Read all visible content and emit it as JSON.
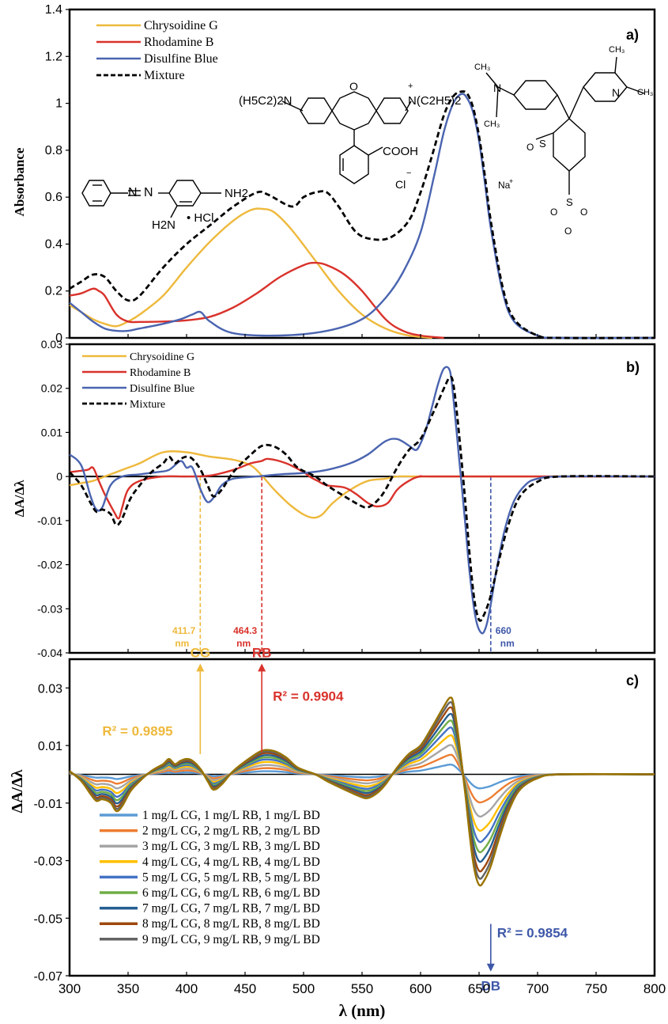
{
  "xaxis": {
    "label": "λ (nm)",
    "ticks": [
      "300",
      "350",
      "400",
      "450",
      "500",
      "550",
      "600",
      "650",
      "700",
      "750",
      "800"
    ],
    "range": [
      300,
      800
    ]
  },
  "structures": {
    "rb_left": "(H5C2)2N",
    "rb_right": "N(C2H5)2",
    "rb_acid": "COOH",
    "rb_anion": "Cl",
    "cg_amine1": "NH2",
    "cg_amine2": "H2N",
    "cg_salt": "• HCl",
    "db_cation": "Na"
  },
  "colors": {
    "chrysoidine": "#eeb93c",
    "rhodamine": "#d9322b",
    "disulfine": "#4a64b0",
    "mixture": "#000000",
    "annot_cg": "#eeb93c",
    "annot_rb": "#d9322b",
    "annot_db": "#3e57a8"
  },
  "chart_data": [
    {
      "id": "a",
      "type": "line",
      "panel_label": "a)",
      "ylabel": "Absorbance",
      "ylim": [
        0,
        1.4
      ],
      "yticks": [
        "0",
        "0.2",
        "0.4",
        "0.6",
        "0.8",
        "1",
        "1.2",
        "1.4"
      ],
      "legend_position": "top-left",
      "series": [
        {
          "name": "Chrysoidine G",
          "x": [
            300,
            310,
            320,
            330,
            340,
            350,
            360,
            380,
            400,
            420,
            440,
            455,
            465,
            475,
            490,
            510,
            530,
            550,
            570,
            590,
            610
          ],
          "y": [
            0.14,
            0.11,
            0.08,
            0.06,
            0.05,
            0.07,
            0.1,
            0.18,
            0.3,
            0.41,
            0.5,
            0.545,
            0.55,
            0.535,
            0.46,
            0.33,
            0.2,
            0.1,
            0.04,
            0.01,
            0
          ]
        },
        {
          "name": "Rhodamine B",
          "x": [
            300,
            310,
            320,
            325,
            330,
            340,
            350,
            360,
            380,
            400,
            420,
            440,
            460,
            480,
            500,
            510,
            520,
            535,
            550,
            570,
            585,
            600,
            620
          ],
          "y": [
            0.18,
            0.19,
            0.21,
            0.2,
            0.18,
            0.1,
            0.07,
            0.068,
            0.07,
            0.075,
            0.09,
            0.13,
            0.19,
            0.26,
            0.31,
            0.32,
            0.31,
            0.27,
            0.2,
            0.08,
            0.03,
            0.01,
            0
          ]
        },
        {
          "name": "Disulfine Blue",
          "x": [
            300,
            310,
            320,
            330,
            340,
            350,
            360,
            380,
            395,
            405,
            412,
            420,
            440,
            480,
            520,
            550,
            570,
            585,
            600,
            612,
            620,
            628,
            635,
            640,
            645,
            650,
            655,
            660,
            670,
            680,
            700,
            720,
            800
          ],
          "y": [
            0.15,
            0.11,
            0.07,
            0.04,
            0.03,
            0.03,
            0.04,
            0.06,
            0.08,
            0.1,
            0.11,
            0.07,
            0.02,
            0.01,
            0.03,
            0.08,
            0.17,
            0.28,
            0.45,
            0.7,
            0.88,
            1.0,
            1.04,
            1.02,
            0.96,
            0.84,
            0.66,
            0.47,
            0.2,
            0.07,
            0.01,
            0,
            0
          ]
        },
        {
          "name": "Mixture",
          "x": [
            300,
            310,
            320,
            330,
            340,
            350,
            360,
            380,
            400,
            420,
            440,
            460,
            470,
            490,
            500,
            510,
            520,
            530,
            545,
            560,
            575,
            590,
            600,
            610,
            620,
            628,
            635,
            640,
            645,
            650,
            655,
            660,
            670,
            680,
            700,
            720,
            800
          ],
          "y": [
            0.21,
            0.24,
            0.27,
            0.26,
            0.2,
            0.16,
            0.18,
            0.3,
            0.4,
            0.48,
            0.56,
            0.62,
            0.61,
            0.56,
            0.6,
            0.62,
            0.62,
            0.56,
            0.45,
            0.42,
            0.43,
            0.5,
            0.62,
            0.78,
            0.95,
            1.03,
            1.05,
            1.04,
            0.98,
            0.86,
            0.69,
            0.5,
            0.22,
            0.08,
            0.01,
            0,
            0
          ]
        }
      ]
    },
    {
      "id": "b",
      "type": "line",
      "panel_label": "b)",
      "ylabel": "ΔA/Δλ",
      "ylim": [
        -0.04,
        0.03
      ],
      "yticks": [
        "-0.04",
        "-0.03",
        "-0.02",
        "-0.01",
        "0",
        "0.01",
        "0.02",
        "0.03"
      ],
      "legend_position": "top-left",
      "series": [
        {
          "name": "Chrysoidine G",
          "x": [
            300,
            310,
            320,
            330,
            340,
            350,
            360,
            380,
            400,
            420,
            440,
            455,
            465,
            475,
            490,
            505,
            515,
            525,
            540,
            555,
            570,
            580,
            600,
            650,
            800
          ],
          "y": [
            -0.002,
            -0.0015,
            -0.001,
            0,
            0.001,
            0.002,
            0.003,
            0.0055,
            0.0055,
            0.0045,
            0.0038,
            0.0025,
            0,
            -0.003,
            -0.0068,
            -0.0092,
            -0.0088,
            -0.006,
            -0.003,
            -0.001,
            -0.0005,
            0,
            0,
            0,
            0
          ]
        },
        {
          "name": "Rhodamine B",
          "x": [
            300,
            315,
            320,
            325,
            330,
            338,
            342,
            345,
            350,
            360,
            380,
            400,
            420,
            440,
            455,
            464,
            470,
            485,
            500,
            505,
            512,
            520,
            535,
            545,
            555,
            563,
            572,
            580,
            590,
            600,
            620,
            800
          ],
          "y": [
            0.001,
            0.0015,
            0.002,
            -0.001,
            -0.004,
            -0.008,
            -0.0095,
            -0.007,
            -0.003,
            -0.001,
            0,
            0,
            0.0002,
            0.0015,
            0.003,
            0.0035,
            0.004,
            0.003,
            0.001,
            0,
            -0.001,
            -0.002,
            -0.0025,
            -0.004,
            -0.006,
            -0.0068,
            -0.006,
            -0.003,
            -0.001,
            0,
            0,
            0
          ]
        },
        {
          "name": "Disulfine Blue",
          "x": [
            300,
            310,
            318,
            323,
            328,
            335,
            345,
            360,
            375,
            385,
            395,
            400,
            405,
            412,
            418,
            424,
            430,
            440,
            460,
            480,
            500,
            520,
            540,
            555,
            570,
            580,
            590,
            596,
            600,
            605,
            610,
            615,
            620,
            625,
            628,
            633,
            638,
            642,
            647,
            652,
            656,
            660,
            665,
            672,
            680,
            690,
            700,
            720,
            800
          ],
          "y": [
            0.005,
            0.0025,
            -0.0045,
            -0.0075,
            -0.007,
            -0.002,
            0,
            0.0005,
            0.001,
            0.0015,
            0.0035,
            0.002,
            0.002,
            -0.003,
            -0.0058,
            -0.0045,
            -0.002,
            -0.0005,
            0,
            0.0005,
            0.0008,
            0.0015,
            0.003,
            0.005,
            0.008,
            0.0085,
            0.007,
            0.006,
            0.0075,
            0.011,
            0.016,
            0.021,
            0.0245,
            0.024,
            0.018,
            0.004,
            -0.01,
            -0.022,
            -0.032,
            -0.0355,
            -0.034,
            -0.029,
            -0.021,
            -0.012,
            -0.0055,
            -0.0018,
            -0.0005,
            0,
            0
          ]
        },
        {
          "name": "Mixture",
          "x": [
            300,
            310,
            318,
            323,
            328,
            335,
            340,
            345,
            352,
            360,
            370,
            380,
            385,
            390,
            395,
            400,
            405,
            412,
            418,
            423,
            430,
            440,
            455,
            465,
            475,
            485,
            495,
            510,
            520,
            535,
            548,
            555,
            563,
            570,
            580,
            590,
            600,
            610,
            620,
            625,
            628,
            632,
            638,
            642,
            646,
            650,
            654,
            660,
            667,
            675,
            685,
            700,
            720,
            800
          ],
          "y": [
            0.001,
            -0.002,
            -0.006,
            -0.008,
            -0.0075,
            -0.0085,
            -0.011,
            -0.0095,
            -0.005,
            -0.002,
            0.001,
            0.003,
            0.0045,
            0.003,
            0.004,
            0.0045,
            0.004,
            0.0015,
            -0.002,
            -0.0045,
            -0.003,
            0.001,
            0.005,
            0.007,
            0.0068,
            0.005,
            0.002,
            0,
            -0.002,
            -0.0045,
            -0.0065,
            -0.007,
            -0.0055,
            -0.003,
            0.002,
            0.006,
            0.0085,
            0.014,
            0.02,
            0.0225,
            0.021,
            0.012,
            -0.005,
            -0.018,
            -0.028,
            -0.0325,
            -0.0315,
            -0.027,
            -0.019,
            -0.011,
            -0.0045,
            -0.0012,
            0,
            0
          ]
        }
      ],
      "annotations": [
        {
          "text": "411.7",
          "unit": "nm",
          "x": 411.7,
          "color_key": "annot_cg"
        },
        {
          "text": "464.3",
          "unit": "nm",
          "x": 464.3,
          "color_key": "annot_rb"
        },
        {
          "text": "660",
          "unit": "nm",
          "x": 660,
          "color_key": "annot_db"
        }
      ]
    },
    {
      "id": "c",
      "type": "line",
      "panel_label": "c)",
      "ylabel": "ΔA/Δλ",
      "ylim": [
        -0.07,
        0.04
      ],
      "yticks": [
        "-0.07",
        "-0.05",
        "-0.03",
        "-0.01",
        "0.01",
        "0.03"
      ],
      "ytick_values": [
        -0.07,
        -0.05,
        -0.03,
        -0.01,
        0.01,
        0.03
      ],
      "legend_position": "bottom-left",
      "base_profile": {
        "x": [
          300,
          310,
          318,
          323,
          328,
          335,
          340,
          345,
          352,
          360,
          370,
          380,
          385,
          390,
          395,
          400,
          405,
          412,
          418,
          423,
          430,
          440,
          455,
          465,
          475,
          485,
          495,
          510,
          520,
          535,
          548,
          555,
          563,
          570,
          580,
          590,
          600,
          610,
          620,
          625,
          628,
          632,
          638,
          642,
          646,
          650,
          654,
          660,
          667,
          675,
          685,
          700,
          720,
          800
        ],
        "y": [
          0.0006,
          -0.0012,
          -0.0035,
          -0.0047,
          -0.0044,
          -0.005,
          -0.0065,
          -0.0056,
          -0.003,
          -0.0012,
          0.0006,
          0.0018,
          0.0027,
          0.0018,
          0.0024,
          0.0027,
          0.0024,
          0.0009,
          -0.0012,
          -0.0027,
          -0.0018,
          0.0006,
          0.003,
          0.0042,
          0.0041,
          0.003,
          0.0012,
          0,
          -0.0012,
          -0.0027,
          -0.0039,
          -0.0042,
          -0.0033,
          -0.0018,
          0.0012,
          0.0036,
          0.0051,
          0.0084,
          0.012,
          0.0135,
          0.0126,
          0.0072,
          -0.003,
          -0.0108,
          -0.0168,
          -0.0195,
          -0.0189,
          -0.0162,
          -0.0114,
          -0.0066,
          -0.0027,
          -0.0007,
          0,
          0
        ]
      },
      "series": [
        {
          "name": "1 mg/L CG, 1 mg/L RB, 1 mg/L BD",
          "scale": 0.25,
          "color": "#5b9bd5"
        },
        {
          "name": "2 mg/L CG, 2 mg/L RB, 2 mg/L BD",
          "scale": 0.5,
          "color": "#ed7d31"
        },
        {
          "name": "3 mg/L CG, 3 mg/L RB, 3 mg/L BD",
          "scale": 0.75,
          "color": "#a5a5a5"
        },
        {
          "name": "4 mg/L CG, 4 mg/L RB, 4 mg/L BD",
          "scale": 1.0,
          "color": "#ffc000"
        },
        {
          "name": "5 mg/L CG, 5 mg/L RB, 5 mg/L BD",
          "scale": 1.2,
          "color": "#4472c4"
        },
        {
          "name": "6 mg/L CG, 6 mg/L RB, 6 mg/L BD",
          "scale": 1.38,
          "color": "#70ad47"
        },
        {
          "name": "7 mg/L CG, 7 mg/L RB, 7 mg/L BD",
          "scale": 1.55,
          "color": "#255e91"
        },
        {
          "name": "8 mg/L CG, 8 mg/L RB, 8 mg/L BD",
          "scale": 1.72,
          "color": "#9e480e"
        },
        {
          "name": "9 mg/L CG, 9 mg/L RB, 9 mg/L BD",
          "scale": 1.85,
          "color": "#636363"
        },
        {
          "name": "",
          "scale": 1.97,
          "color": "#997300"
        }
      ],
      "annotations": [
        {
          "label": "CG",
          "r2": "R² = 0.9895",
          "x": 411.7,
          "color_key": "annot_cg"
        },
        {
          "label": "RB",
          "r2": "R² = 0.9904",
          "x": 464.3,
          "color_key": "annot_rb"
        },
        {
          "label": "DB",
          "r2": "R² = 0.9854",
          "x": 660,
          "color_key": "annot_db"
        }
      ]
    }
  ]
}
